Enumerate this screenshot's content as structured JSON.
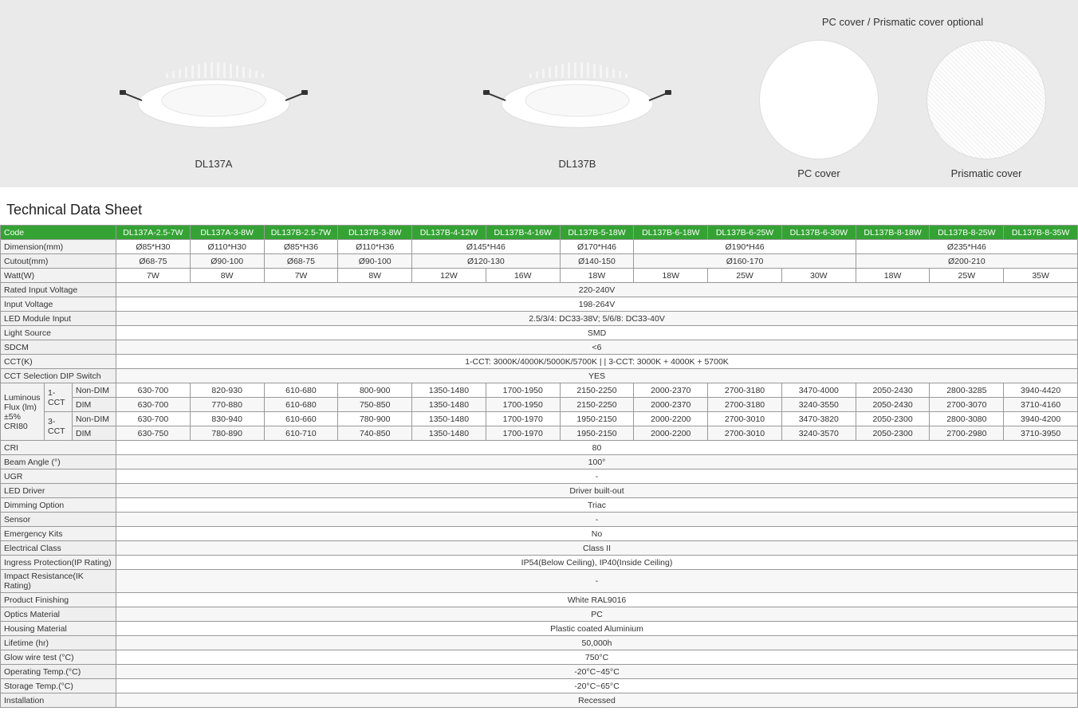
{
  "hero": {
    "cover_title": "PC cover / Prismatic cover optional",
    "products": [
      {
        "name": "DL137A"
      },
      {
        "name": "DL137B"
      }
    ],
    "covers": [
      {
        "name": "PC cover",
        "kind": "plain"
      },
      {
        "name": "Prismatic cover",
        "kind": "prismatic"
      }
    ]
  },
  "table": {
    "title": "Technical Data Sheet",
    "header_bg": "#34a334",
    "header_fg": "#ffffff",
    "border_color": "#999999",
    "alt_row_bg": "#f7f7f7",
    "label_bg": "#f2f2f2",
    "code_label": "Code",
    "codes": [
      "DL137A-2.5-7W",
      "DL137A-3-8W",
      "DL137B-2.5-7W",
      "DL137B-3-8W",
      "DL137B-4-12W",
      "DL137B-4-16W",
      "DL137B-5-18W",
      "DL137B-6-18W",
      "DL137B-6-25W",
      "DL137B-6-30W",
      "DL137B-8-18W",
      "DL137B-8-25W",
      "DL137B-8-35W"
    ],
    "dimension": {
      "label": "Dimension(mm)",
      "cells": [
        {
          "v": "Ø85*H30"
        },
        {
          "v": "Ø110*H30"
        },
        {
          "v": "Ø85*H36"
        },
        {
          "v": "Ø110*H36"
        },
        {
          "v": "Ø145*H46",
          "span": 2
        },
        {
          "v": "Ø170*H46"
        },
        {
          "v": "Ø190*H46",
          "span": 3
        },
        {
          "v": "Ø235*H46",
          "span": 3
        }
      ]
    },
    "cutout": {
      "label": "Cutout(mm)",
      "cells": [
        {
          "v": "Ø68-75"
        },
        {
          "v": "Ø90-100"
        },
        {
          "v": "Ø68-75"
        },
        {
          "v": "Ø90-100"
        },
        {
          "v": "Ø120-130",
          "span": 2
        },
        {
          "v": "Ø140-150"
        },
        {
          "v": "Ø160-170",
          "span": 3
        },
        {
          "v": "Ø200-210",
          "span": 3
        }
      ]
    },
    "watt": {
      "label": "Watt(W)",
      "cells": [
        {
          "v": "7W"
        },
        {
          "v": "8W"
        },
        {
          "v": "7W"
        },
        {
          "v": "8W"
        },
        {
          "v": "12W"
        },
        {
          "v": "16W"
        },
        {
          "v": "18W"
        },
        {
          "v": "18W"
        },
        {
          "v": "25W"
        },
        {
          "v": "30W"
        },
        {
          "v": "18W"
        },
        {
          "v": "25W"
        },
        {
          "v": "35W"
        }
      ]
    },
    "full_rows": [
      {
        "label": "Rated Input Voltage",
        "v": "220-240V"
      },
      {
        "label": "Input Voltage",
        "v": "198-264V"
      },
      {
        "label": "LED Module Input",
        "v": "2.5/3/4: DC33-38V; 5/6/8: DC33-40V"
      },
      {
        "label": "Light Source",
        "v": "SMD"
      },
      {
        "label": "SDCM",
        "v": "<6"
      },
      {
        "label": "CCT(K)",
        "v": "1-CCT: 3000K/4000K/5000K/5700K | | 3-CCT: 3000K + 4000K + 5700K"
      },
      {
        "label": "CCT Selection DIP Switch",
        "v": "YES"
      }
    ],
    "flux": {
      "label": "Luminous Flux (lm)±5% CRI80",
      "groups": [
        {
          "name": "1-CCT",
          "rows": [
            {
              "mode": "Non-DIM",
              "v": [
                "630-700",
                "820-930",
                "610-680",
                "800-900",
                "1350-1480",
                "1700-1950",
                "2150-2250",
                "2000-2370",
                "2700-3180",
                "3470-4000",
                "2050-2430",
                "2800-3285",
                "3940-4420"
              ]
            },
            {
              "mode": "DIM",
              "v": [
                "630-700",
                "770-880",
                "610-680",
                "750-850",
                "1350-1480",
                "1700-1950",
                "2150-2250",
                "2000-2370",
                "2700-3180",
                "3240-3550",
                "2050-2430",
                "2700-3070",
                "3710-4160"
              ]
            }
          ]
        },
        {
          "name": "3-CCT",
          "rows": [
            {
              "mode": "Non-DIM",
              "v": [
                "630-700",
                "830-940",
                "610-660",
                "780-900",
                "1350-1480",
                "1700-1970",
                "1950-2150",
                "2000-2200",
                "2700-3010",
                "3470-3820",
                "2050-2300",
                "2800-3080",
                "3940-4200"
              ]
            },
            {
              "mode": "DIM",
              "v": [
                "630-750",
                "780-890",
                "610-710",
                "740-850",
                "1350-1480",
                "1700-1970",
                "1950-2150",
                "2000-2200",
                "2700-3010",
                "3240-3570",
                "2050-2300",
                "2700-2980",
                "3710-3950"
              ]
            }
          ]
        }
      ]
    },
    "tail_rows": [
      {
        "label": "CRI",
        "v": "80"
      },
      {
        "label": "Beam Angle (°)",
        "v": "100°"
      },
      {
        "label": "UGR",
        "v": "-"
      },
      {
        "label": "LED Driver",
        "v": "Driver built-out"
      },
      {
        "label": "Dimming Option",
        "v": "Triac"
      },
      {
        "label": "Sensor",
        "v": "-"
      },
      {
        "label": "Emergency Kits",
        "v": "No"
      },
      {
        "label": "Electrical Class",
        "v": "Class II"
      },
      {
        "label": "Ingress Protection(IP Rating)",
        "v": "IP54(Below Ceiling), IP40(Inside Ceiling)"
      },
      {
        "label": "Impact Resistance(IK Rating)",
        "v": "-"
      },
      {
        "label": "Product Finishing",
        "v": "White RAL9016"
      },
      {
        "label": "Optics Material",
        "v": "PC"
      },
      {
        "label": "Housing Material",
        "v": "Plastic coated Aluminium"
      },
      {
        "label": "Lifetime (hr)",
        "v": "50,000h"
      },
      {
        "label": "Glow wire test (°C)",
        "v": "750°C"
      },
      {
        "label": "Operating Temp.(°C)",
        "v": "-20°C~45°C"
      },
      {
        "label": "Storage Temp.(°C)",
        "v": "-20°C~65°C"
      },
      {
        "label": "Installation",
        "v": "Recessed"
      }
    ]
  }
}
